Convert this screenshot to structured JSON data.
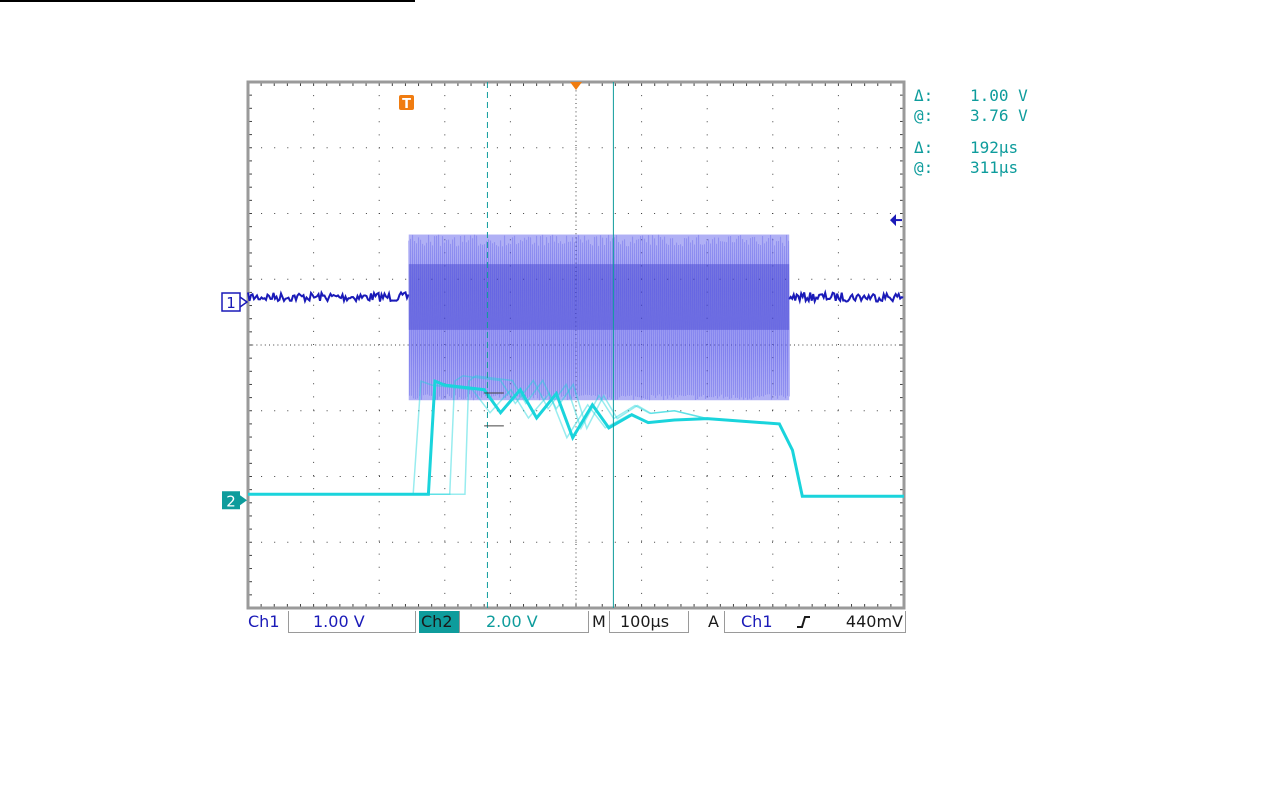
{
  "colors": {
    "ch1": "#1a1ab8",
    "ch1_fill": "#5050e8",
    "ch2": "#1ad4dc",
    "ch2_label": "#0e9c9c",
    "trigger": "#f07c10",
    "grid": "#404040"
  },
  "markers": {
    "trigger_icon": "T",
    "ch1_marker": "1",
    "ch2_marker": "2"
  },
  "cursor_readout": {
    "v_delta_label": "Δ:",
    "v_delta_value": "1.00 V",
    "v_at_label": "@:",
    "v_at_value": "3.76 V",
    "t_delta_label": "Δ:",
    "t_delta_value": "192µs",
    "t_at_label": "@:",
    "t_at_value": "311µs"
  },
  "status_bar": {
    "ch1_label": "Ch1",
    "ch1_scale": "1.00 V",
    "ch2_label": "Ch2",
    "ch2_scale": "2.00 V",
    "timebase_label": "M",
    "timebase_value": "100µs",
    "trigger_mode": "A",
    "trigger_source": "Ch1",
    "trigger_slope": "rising-edge-icon",
    "trigger_level": "440mV"
  },
  "chart_data": {
    "type": "line",
    "grid": true,
    "divisions": {
      "x": 10,
      "y": 8
    },
    "xlim_div": [
      0,
      10
    ],
    "ylim_div": [
      -4,
      4
    ],
    "series": [
      {
        "name": "Ch1",
        "baseline_div": 0.73,
        "burst": {
          "start_div": 2.45,
          "end_div": 8.25,
          "top_div": 1.68,
          "bottom_div": -0.84
        },
        "noise_div": 0.07
      },
      {
        "name": "Ch2",
        "x_div": [
          0,
          2.75,
          2.85,
          3.0,
          3.6,
          3.85,
          4.15,
          4.4,
          4.7,
          4.95,
          5.25,
          5.5,
          5.85,
          6.1,
          6.5,
          7.0,
          8.1,
          8.3,
          8.45,
          10
        ],
        "y_div": [
          -2.27,
          -2.27,
          -0.55,
          -0.55,
          -0.62,
          -0.97,
          -0.62,
          -1.05,
          -0.68,
          -1.35,
          -0.85,
          -1.2,
          -1.0,
          -1.12,
          -1.08,
          -1.12,
          -1.2,
          -1.6,
          -2.3,
          -2.3
        ]
      }
    ],
    "cursors": {
      "horizontal_div": [
        -0.73,
        -1.23
      ],
      "vertical_div": [
        3.65,
        5.57
      ]
    },
    "trigger_position_div": 2.45,
    "trigger_time_div": 5.0,
    "trigger_level_div": 1.9
  }
}
